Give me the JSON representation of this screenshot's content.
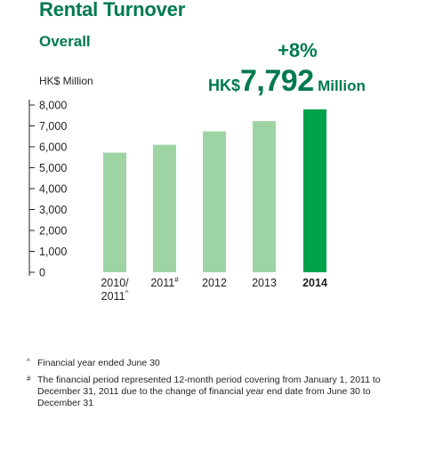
{
  "header": {
    "title": "Rental Turnover",
    "subtitle": "Overall"
  },
  "highlight": {
    "growth": "+8%",
    "currency": "HK$",
    "value": "7,792",
    "unit": "Million"
  },
  "chart_data": {
    "type": "bar",
    "categories": [
      "2010/2011^",
      "2011#",
      "2012",
      "2013",
      "2014"
    ],
    "category_labels": [
      {
        "main": "2010/",
        "line2": "2011",
        "sup": "^"
      },
      {
        "main": "2011",
        "line2": "",
        "sup": "#"
      },
      {
        "main": "2012",
        "line2": "",
        "sup": ""
      },
      {
        "main": "2013",
        "line2": "",
        "sup": ""
      },
      {
        "main": "2014",
        "line2": "",
        "sup": ""
      }
    ],
    "values": [
      5720,
      6100,
      6740,
      7230,
      7792
    ],
    "highlight_index": 4,
    "ylabel": "HK$ Million",
    "ylim": [
      0,
      8000
    ],
    "yticks": [
      0,
      1000,
      2000,
      3000,
      4000,
      5000,
      6000,
      7000,
      8000
    ],
    "ytick_labels": [
      "0",
      "1,000",
      "2,000",
      "3,000",
      "4,000",
      "5,000",
      "6,000",
      "7,000",
      "8,000"
    ],
    "colors": {
      "bar": "#9ed4a4",
      "bar_highlight": "#00a14b",
      "axis": "#231f20"
    },
    "grid": false
  },
  "footnotes": [
    {
      "mark": "^",
      "text": "Financial year ended June 30"
    },
    {
      "mark": "#",
      "text": "The financial period represented 12-month period covering from January 1, 2011 to December 31, 2011 due to the change of financial year end date from June 30 to December 31"
    }
  ]
}
